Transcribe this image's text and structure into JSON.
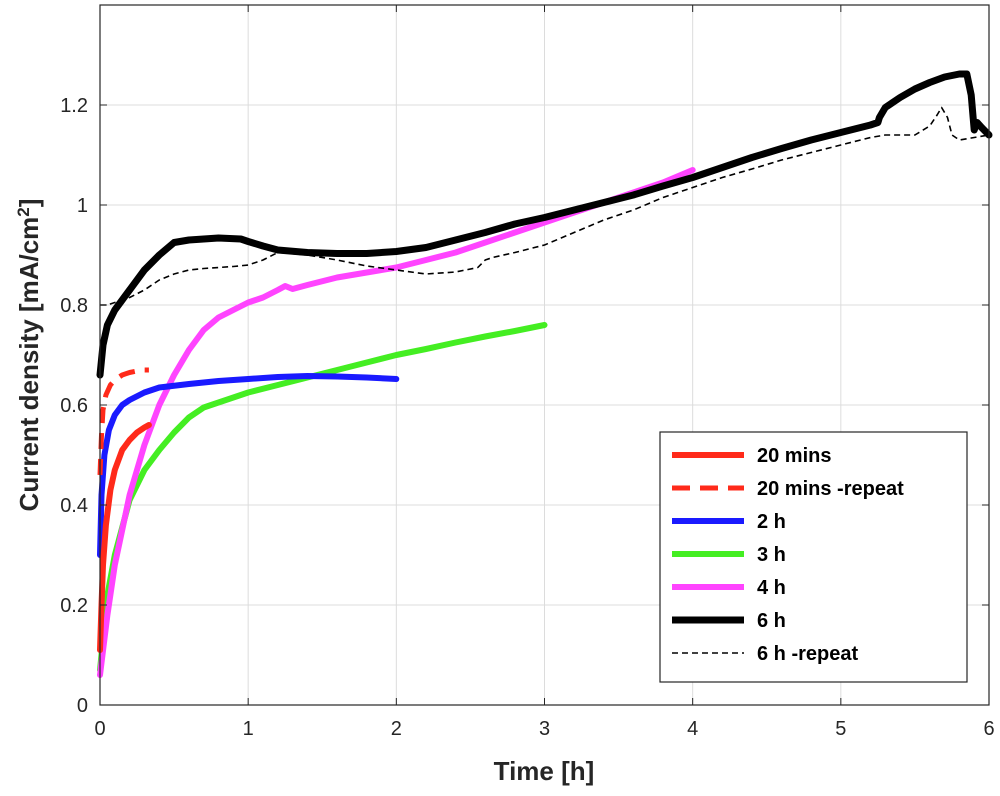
{
  "chart_data": {
    "type": "line",
    "title": "",
    "xlabel": "Time [h]",
    "ylabel": "Current density [mA/cm",
    "ylabel_sup": "2",
    "ylabel_close": "]",
    "xlim": [
      0,
      6
    ],
    "ylim": [
      0,
      1.4
    ],
    "xticks": [
      0,
      1,
      2,
      3,
      4,
      5,
      6
    ],
    "xtick_labels": [
      "0",
      "1",
      "2",
      "3",
      "4",
      "5",
      "6"
    ],
    "yticks": [
      0,
      0.2,
      0.4,
      0.6,
      0.8,
      1.0,
      1.2
    ],
    "ytick_labels": [
      "0",
      "0.2",
      "0.4",
      "0.6",
      "0.8",
      "1",
      "1.2"
    ],
    "grid": true,
    "legend_position": "bottom-right",
    "series": [
      {
        "name": "20 mins",
        "color": "#ff2a1a",
        "style": "solid",
        "x": [
          0,
          0.01,
          0.02,
          0.04,
          0.07,
          0.1,
          0.15,
          0.2,
          0.25,
          0.3,
          0.33
        ],
        "y": [
          0.11,
          0.2,
          0.28,
          0.36,
          0.43,
          0.47,
          0.51,
          0.53,
          0.545,
          0.555,
          0.56
        ]
      },
      {
        "name": "20 mins -repeat",
        "color": "#ff2a1a",
        "style": "dashed",
        "x": [
          0,
          0.01,
          0.02,
          0.04,
          0.07,
          0.1,
          0.15,
          0.2,
          0.25,
          0.3,
          0.33
        ],
        "y": [
          0.46,
          0.54,
          0.59,
          0.62,
          0.64,
          0.65,
          0.66,
          0.665,
          0.668,
          0.67,
          0.67
        ]
      },
      {
        "name": "2 h",
        "color": "#1a1aff",
        "style": "solid",
        "x": [
          0,
          0.01,
          0.03,
          0.06,
          0.1,
          0.15,
          0.2,
          0.3,
          0.4,
          0.6,
          0.8,
          1.0,
          1.2,
          1.4,
          1.6,
          1.8,
          2.0
        ],
        "y": [
          0.3,
          0.42,
          0.5,
          0.55,
          0.58,
          0.6,
          0.61,
          0.625,
          0.635,
          0.642,
          0.648,
          0.652,
          0.656,
          0.658,
          0.657,
          0.655,
          0.652
        ]
      },
      {
        "name": "3 h",
        "color": "#44ee22",
        "style": "solid",
        "x": [
          0,
          0.05,
          0.1,
          0.2,
          0.3,
          0.4,
          0.5,
          0.6,
          0.7,
          0.8,
          1.0,
          1.2,
          1.4,
          1.6,
          1.8,
          2.0,
          2.2,
          2.4,
          2.6,
          2.8,
          3.0
        ],
        "y": [
          0.07,
          0.22,
          0.3,
          0.41,
          0.47,
          0.51,
          0.545,
          0.575,
          0.595,
          0.605,
          0.625,
          0.64,
          0.655,
          0.67,
          0.685,
          0.7,
          0.712,
          0.725,
          0.737,
          0.748,
          0.76
        ]
      },
      {
        "name": "4 h",
        "color": "#ff44ff",
        "style": "solid",
        "x": [
          0,
          0.05,
          0.1,
          0.2,
          0.3,
          0.4,
          0.5,
          0.6,
          0.7,
          0.8,
          0.9,
          1.0,
          1.1,
          1.2,
          1.25,
          1.3,
          1.4,
          1.6,
          1.8,
          2.0,
          2.2,
          2.4,
          2.6,
          2.8,
          3.0,
          3.2,
          3.4,
          3.6,
          3.8,
          4.0
        ],
        "y": [
          0.06,
          0.18,
          0.28,
          0.42,
          0.52,
          0.6,
          0.66,
          0.71,
          0.75,
          0.775,
          0.79,
          0.805,
          0.815,
          0.83,
          0.838,
          0.832,
          0.84,
          0.855,
          0.865,
          0.875,
          0.89,
          0.905,
          0.925,
          0.945,
          0.965,
          0.985,
          1.005,
          1.025,
          1.045,
          1.07
        ]
      },
      {
        "name": "6 h",
        "color": "#000000",
        "style": "solid",
        "x": [
          0,
          0.02,
          0.05,
          0.1,
          0.15,
          0.2,
          0.3,
          0.4,
          0.5,
          0.6,
          0.8,
          0.95,
          1.0,
          1.1,
          1.2,
          1.4,
          1.6,
          1.8,
          2.0,
          2.2,
          2.4,
          2.6,
          2.8,
          3.0,
          3.2,
          3.4,
          3.6,
          3.8,
          4.0,
          4.2,
          4.4,
          4.6,
          4.8,
          5.0,
          5.2,
          5.25,
          5.26,
          5.3,
          5.4,
          5.5,
          5.6,
          5.7,
          5.8,
          5.85,
          5.88,
          5.9,
          5.92,
          5.95,
          6.0
        ],
        "y": [
          0.66,
          0.72,
          0.76,
          0.79,
          0.81,
          0.83,
          0.87,
          0.9,
          0.925,
          0.93,
          0.934,
          0.932,
          0.927,
          0.918,
          0.91,
          0.905,
          0.903,
          0.903,
          0.907,
          0.915,
          0.93,
          0.945,
          0.962,
          0.975,
          0.99,
          1.005,
          1.02,
          1.038,
          1.055,
          1.075,
          1.095,
          1.113,
          1.13,
          1.145,
          1.16,
          1.165,
          1.175,
          1.195,
          1.215,
          1.232,
          1.245,
          1.256,
          1.262,
          1.262,
          1.22,
          1.15,
          1.165,
          1.155,
          1.14
        ]
      },
      {
        "name": "6 h -repeat",
        "color": "#000000",
        "style": "dotted",
        "x": [
          0,
          0.05,
          0.1,
          0.2,
          0.3,
          0.4,
          0.5,
          0.6,
          0.7,
          0.8,
          0.9,
          1.0,
          1.1,
          1.2,
          1.4,
          1.6,
          1.8,
          2.0,
          2.2,
          2.4,
          2.55,
          2.6,
          2.65,
          2.8,
          3.0,
          3.2,
          3.4,
          3.6,
          3.8,
          4.0,
          4.2,
          4.4,
          4.6,
          4.8,
          5.0,
          5.2,
          5.3,
          5.5,
          5.6,
          5.65,
          5.68,
          5.72,
          5.75,
          5.8,
          5.9,
          6.0
        ],
        "y": [
          0.8,
          0.8,
          0.805,
          0.815,
          0.83,
          0.85,
          0.862,
          0.87,
          0.873,
          0.875,
          0.877,
          0.88,
          0.89,
          0.905,
          0.9,
          0.89,
          0.878,
          0.87,
          0.862,
          0.866,
          0.875,
          0.89,
          0.895,
          0.905,
          0.92,
          0.945,
          0.97,
          0.99,
          1.015,
          1.035,
          1.055,
          1.072,
          1.09,
          1.105,
          1.12,
          1.135,
          1.14,
          1.14,
          1.158,
          1.18,
          1.195,
          1.175,
          1.14,
          1.13,
          1.135,
          1.14
        ]
      }
    ]
  }
}
